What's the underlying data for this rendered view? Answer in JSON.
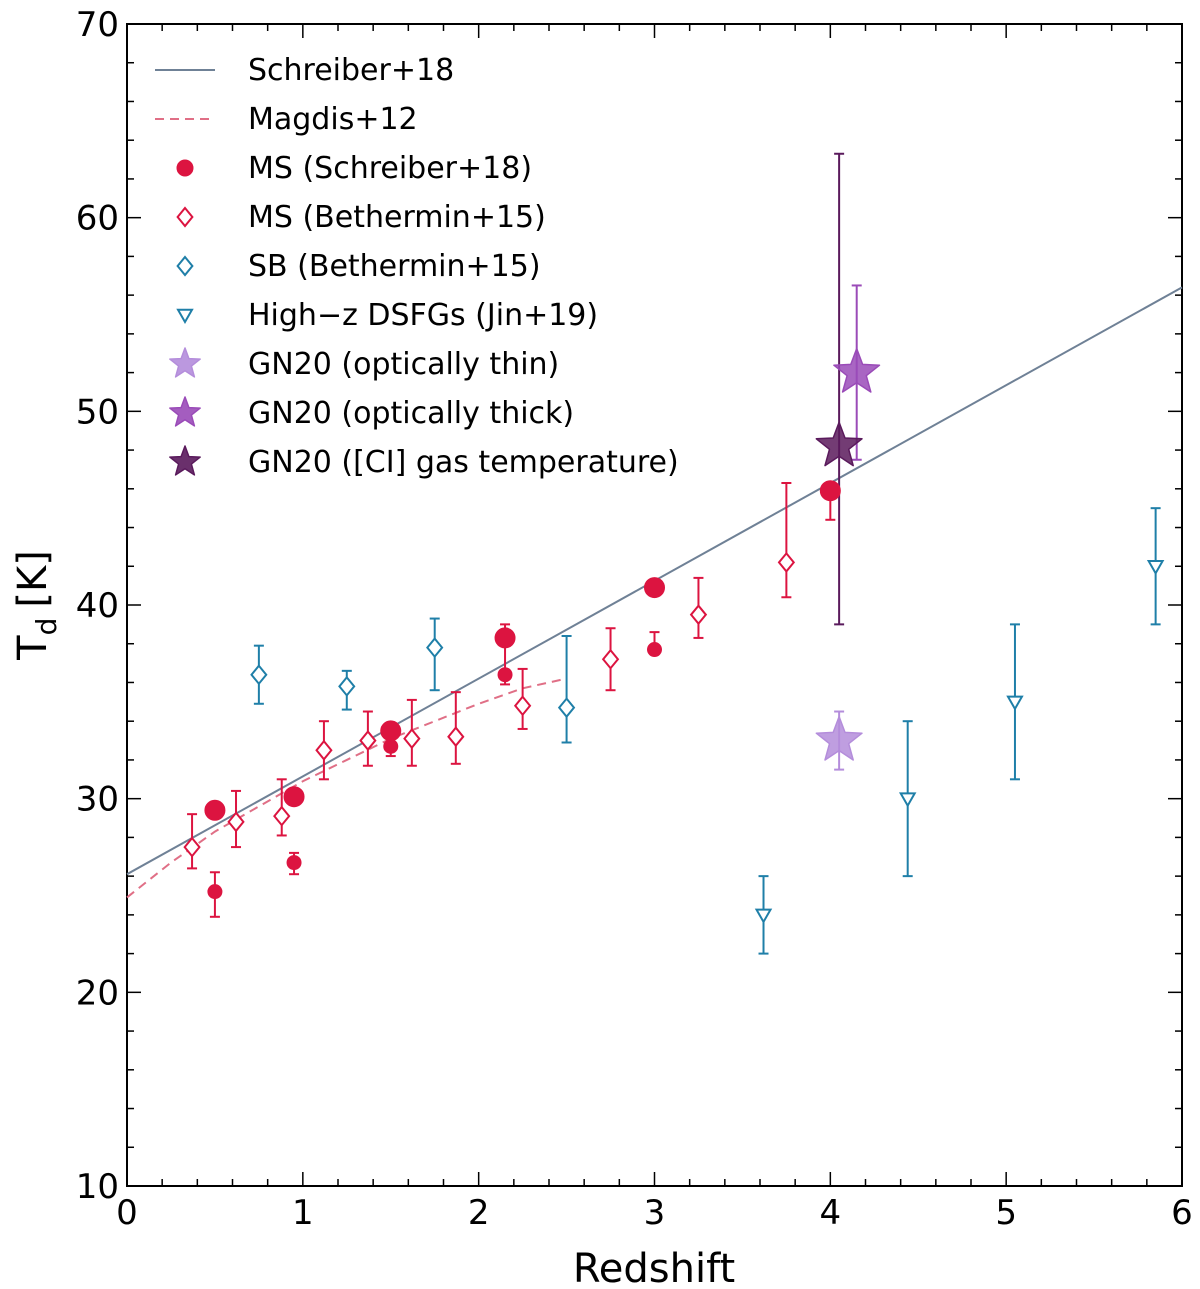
{
  "chart_data": {
    "type": "scatter",
    "xlabel": "Redshift",
    "ylabel_main": "T",
    "ylabel_sub": "d",
    "ylabel_unit": "[K]",
    "xlim": [
      0,
      6
    ],
    "ylim": [
      10,
      70
    ],
    "x_ticks": [
      0,
      1,
      2,
      3,
      4,
      5,
      6
    ],
    "y_ticks": [
      10,
      20,
      30,
      40,
      50,
      60,
      70
    ],
    "x_minor_step": 0.2,
    "y_minor_step": 2,
    "colors": {
      "schreiber_line": "#6f8196",
      "magdis_line": "#e06f86",
      "ms_red": "#dc1440",
      "sb_blue": "#1f7fa8",
      "gn20_thin": "#b48ddb",
      "gn20_thick": "#9a4bb8",
      "gn20_ci": "#5a1a5c"
    },
    "lines": [
      {
        "name": "Schreiber+18",
        "style": "solid",
        "color_key": "schreiber_line",
        "x": [
          0,
          6
        ],
        "y": [
          26.1,
          56.4
        ]
      },
      {
        "name": "Magdis+12",
        "style": "dashed",
        "color_key": "magdis_line",
        "x": [
          0,
          0.25,
          0.5,
          0.75,
          1.0,
          1.25,
          1.5,
          1.75,
          2.0,
          2.25,
          2.5
        ],
        "y": [
          24.9,
          26.7,
          28.3,
          29.6,
          30.9,
          32.0,
          33.1,
          34.0,
          34.9,
          35.7,
          36.2
        ]
      }
    ],
    "series": [
      {
        "name": "MS (Schreiber+18)",
        "marker": "circle",
        "filled": true,
        "color_key": "ms_red",
        "points": [
          {
            "x": 0.5,
            "y": 29.4,
            "err_lo": 0,
            "err_hi": 0,
            "size": "large"
          },
          {
            "x": 0.95,
            "y": 30.1,
            "err_lo": 0,
            "err_hi": 0,
            "size": "large"
          },
          {
            "x": 1.5,
            "y": 33.5,
            "err_lo": 0,
            "err_hi": 0,
            "size": "large"
          },
          {
            "x": 2.15,
            "y": 38.3,
            "err_lo": 0,
            "err_hi": 0,
            "size": "large"
          },
          {
            "x": 3.0,
            "y": 40.9,
            "err_lo": 0,
            "err_hi": 0,
            "size": "large"
          },
          {
            "x": 4.0,
            "y": 45.9,
            "err_lo": 1.5,
            "err_hi": 0,
            "size": "large"
          },
          {
            "x": 0.5,
            "y": 25.2,
            "err_lo": 1.3,
            "err_hi": 1.0,
            "size": "small"
          },
          {
            "x": 0.95,
            "y": 26.7,
            "err_lo": 0.6,
            "err_hi": 0.5,
            "size": "small"
          },
          {
            "x": 1.5,
            "y": 32.7,
            "err_lo": 0.5,
            "err_hi": 0.6,
            "size": "small"
          },
          {
            "x": 2.15,
            "y": 36.4,
            "err_lo": 0.5,
            "err_hi": 2.6,
            "size": "small"
          },
          {
            "x": 3.0,
            "y": 37.7,
            "err_lo": 0,
            "err_hi": 0.9,
            "size": "small"
          }
        ]
      },
      {
        "name": "MS (Bethermin+15)",
        "marker": "diamond",
        "filled": false,
        "color_key": "ms_red",
        "points": [
          {
            "x": 0.37,
            "y": 27.5,
            "err_lo": 1.1,
            "err_hi": 1.7
          },
          {
            "x": 0.62,
            "y": 28.8,
            "err_lo": 1.3,
            "err_hi": 1.6
          },
          {
            "x": 0.88,
            "y": 29.1,
            "err_lo": 1.0,
            "err_hi": 1.9
          },
          {
            "x": 1.12,
            "y": 32.5,
            "err_lo": 1.5,
            "err_hi": 1.5
          },
          {
            "x": 1.37,
            "y": 33.0,
            "err_lo": 1.3,
            "err_hi": 1.5
          },
          {
            "x": 1.62,
            "y": 33.1,
            "err_lo": 1.4,
            "err_hi": 2.0
          },
          {
            "x": 1.87,
            "y": 33.2,
            "err_lo": 1.4,
            "err_hi": 2.3
          },
          {
            "x": 2.25,
            "y": 34.8,
            "err_lo": 1.2,
            "err_hi": 1.9
          },
          {
            "x": 2.75,
            "y": 37.2,
            "err_lo": 1.6,
            "err_hi": 1.6
          },
          {
            "x": 3.25,
            "y": 39.5,
            "err_lo": 1.2,
            "err_hi": 1.9
          },
          {
            "x": 3.75,
            "y": 42.2,
            "err_lo": 1.8,
            "err_hi": 4.1
          }
        ]
      },
      {
        "name": "SB (Bethermin+15)",
        "marker": "diamond",
        "filled": false,
        "color_key": "sb_blue",
        "points": [
          {
            "x": 0.75,
            "y": 36.4,
            "err_lo": 1.5,
            "err_hi": 1.5
          },
          {
            "x": 1.25,
            "y": 35.8,
            "err_lo": 1.2,
            "err_hi": 0.8
          },
          {
            "x": 1.75,
            "y": 37.8,
            "err_lo": 2.2,
            "err_hi": 1.5
          },
          {
            "x": 2.5,
            "y": 34.7,
            "err_lo": 1.8,
            "err_hi": 3.7
          }
        ]
      },
      {
        "name": "High−z DSFGs (Jin+19)",
        "marker": "triangle-down",
        "filled": false,
        "color_key": "sb_blue",
        "points": [
          {
            "x": 3.62,
            "y": 24.0,
            "err_lo": 2.0,
            "err_hi": 2.0
          },
          {
            "x": 4.44,
            "y": 30.0,
            "err_lo": 4.0,
            "err_hi": 4.0
          },
          {
            "x": 5.05,
            "y": 35.0,
            "err_lo": 4.0,
            "err_hi": 4.0
          },
          {
            "x": 5.85,
            "y": 42.0,
            "err_lo": 3.0,
            "err_hi": 3.0
          }
        ]
      },
      {
        "name": "GN20 (optically thin)",
        "marker": "star",
        "filled": true,
        "color_key": "gn20_thin",
        "points": [
          {
            "x": 4.05,
            "y": 33.0,
            "err_lo": 1.5,
            "err_hi": 1.5
          }
        ]
      },
      {
        "name": "GN20 (optically thick)",
        "marker": "star",
        "filled": true,
        "color_key": "gn20_thick",
        "points": [
          {
            "x": 4.15,
            "y": 52.0,
            "err_lo": 4.5,
            "err_hi": 4.5
          }
        ]
      },
      {
        "name": "GN20 ([CI] gas temperature)",
        "marker": "star",
        "filled": true,
        "color_key": "gn20_ci",
        "points": [
          {
            "x": 4.05,
            "y": 48.2,
            "err_lo": 9.2,
            "err_hi": 15.1
          }
        ]
      }
    ],
    "legend": {
      "placement": "top-left",
      "entries": [
        {
          "label": "Schreiber+18",
          "symbol": "line-solid",
          "color_key": "schreiber_line"
        },
        {
          "label": "Magdis+12",
          "symbol": "line-dashed",
          "color_key": "magdis_line"
        },
        {
          "label": "MS (Schreiber+18)",
          "symbol": "circle",
          "color_key": "ms_red"
        },
        {
          "label": "MS (Bethermin+15)",
          "symbol": "diamond",
          "color_key": "ms_red"
        },
        {
          "label": "SB (Bethermin+15)",
          "symbol": "diamond",
          "color_key": "sb_blue"
        },
        {
          "label": "High−z DSFGs (Jin+19)",
          "symbol": "triangle-down",
          "color_key": "sb_blue"
        },
        {
          "label": "GN20 (optically thin)",
          "symbol": "star",
          "color_key": "gn20_thin"
        },
        {
          "label": "GN20 (optically thick)",
          "symbol": "star",
          "color_key": "gn20_thick"
        },
        {
          "label": "GN20 ([CI] gas temperature)",
          "symbol": "star",
          "color_key": "gn20_ci"
        }
      ]
    }
  }
}
